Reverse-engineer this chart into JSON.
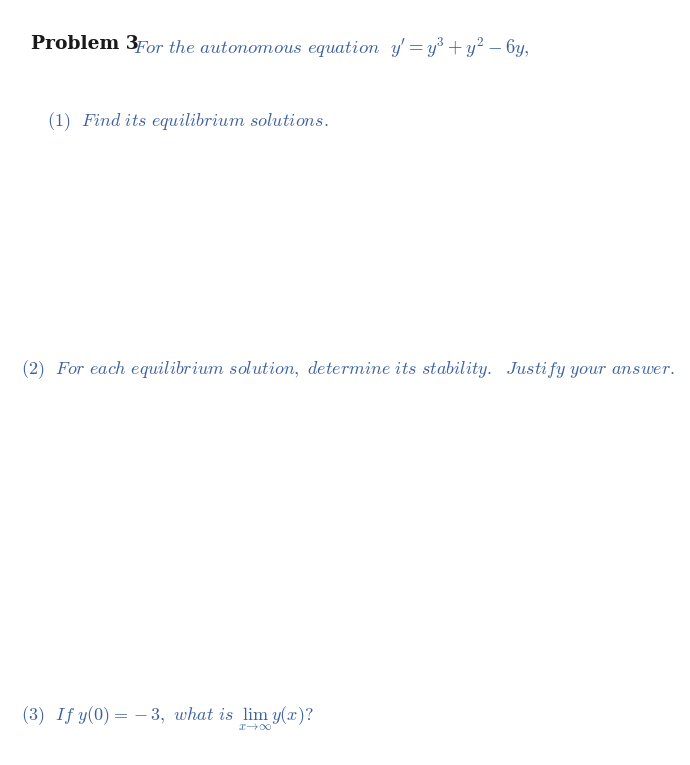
{
  "background_color": "#ffffff",
  "text_color_blue": "#3b5fa0",
  "text_color_black": "#1a1a1a",
  "font_size_title": 13.5,
  "font_size_parts": 13.0,
  "figwidth": 6.9,
  "figheight": 7.65
}
